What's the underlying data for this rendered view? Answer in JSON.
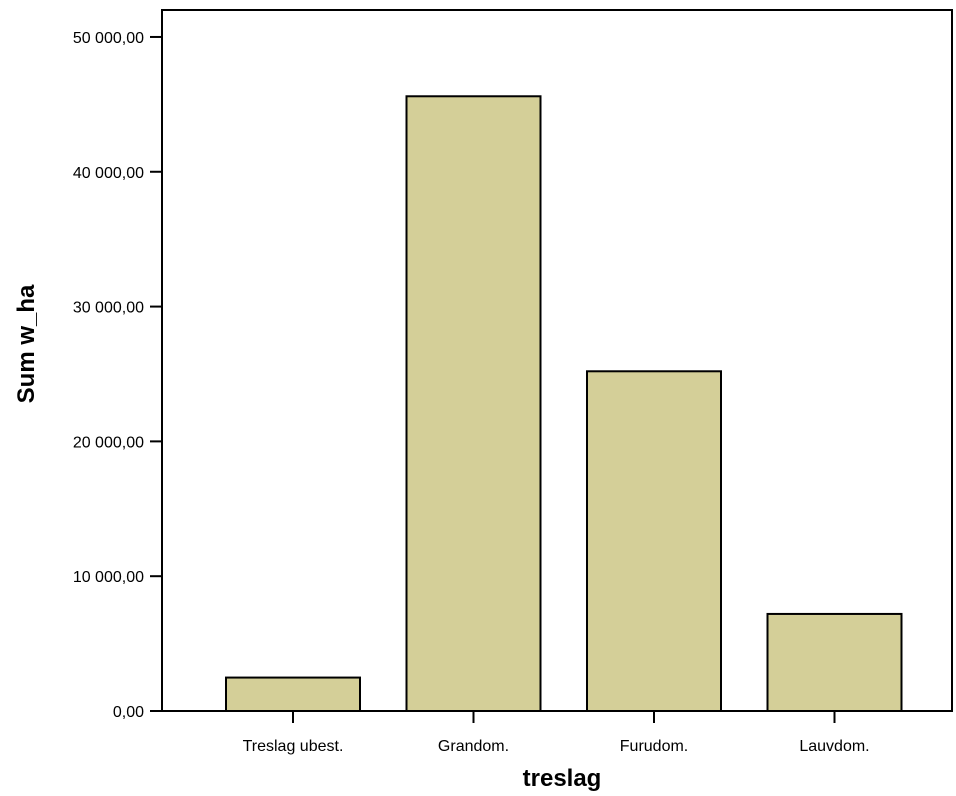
{
  "chart_data": {
    "type": "bar",
    "title": "",
    "xlabel": "treslag",
    "ylabel": "Sum w_ha",
    "categories": [
      "Treslag ubest.",
      "Grandom.",
      "Furudom.",
      "Lauvdom."
    ],
    "values": [
      2480,
      45600,
      25200,
      7200
    ],
    "ylim": [
      0,
      52000
    ],
    "yticks": [
      0,
      10000,
      20000,
      30000,
      40000,
      50000
    ],
    "ytick_labels": [
      "0,00",
      "10 000,00",
      "20 000,00",
      "30 000,00",
      "40 000,00",
      "50 000,00"
    ],
    "grid": false,
    "legend": "none",
    "bar_color": "#d4cf98",
    "bar_edge_color": "#000000"
  }
}
